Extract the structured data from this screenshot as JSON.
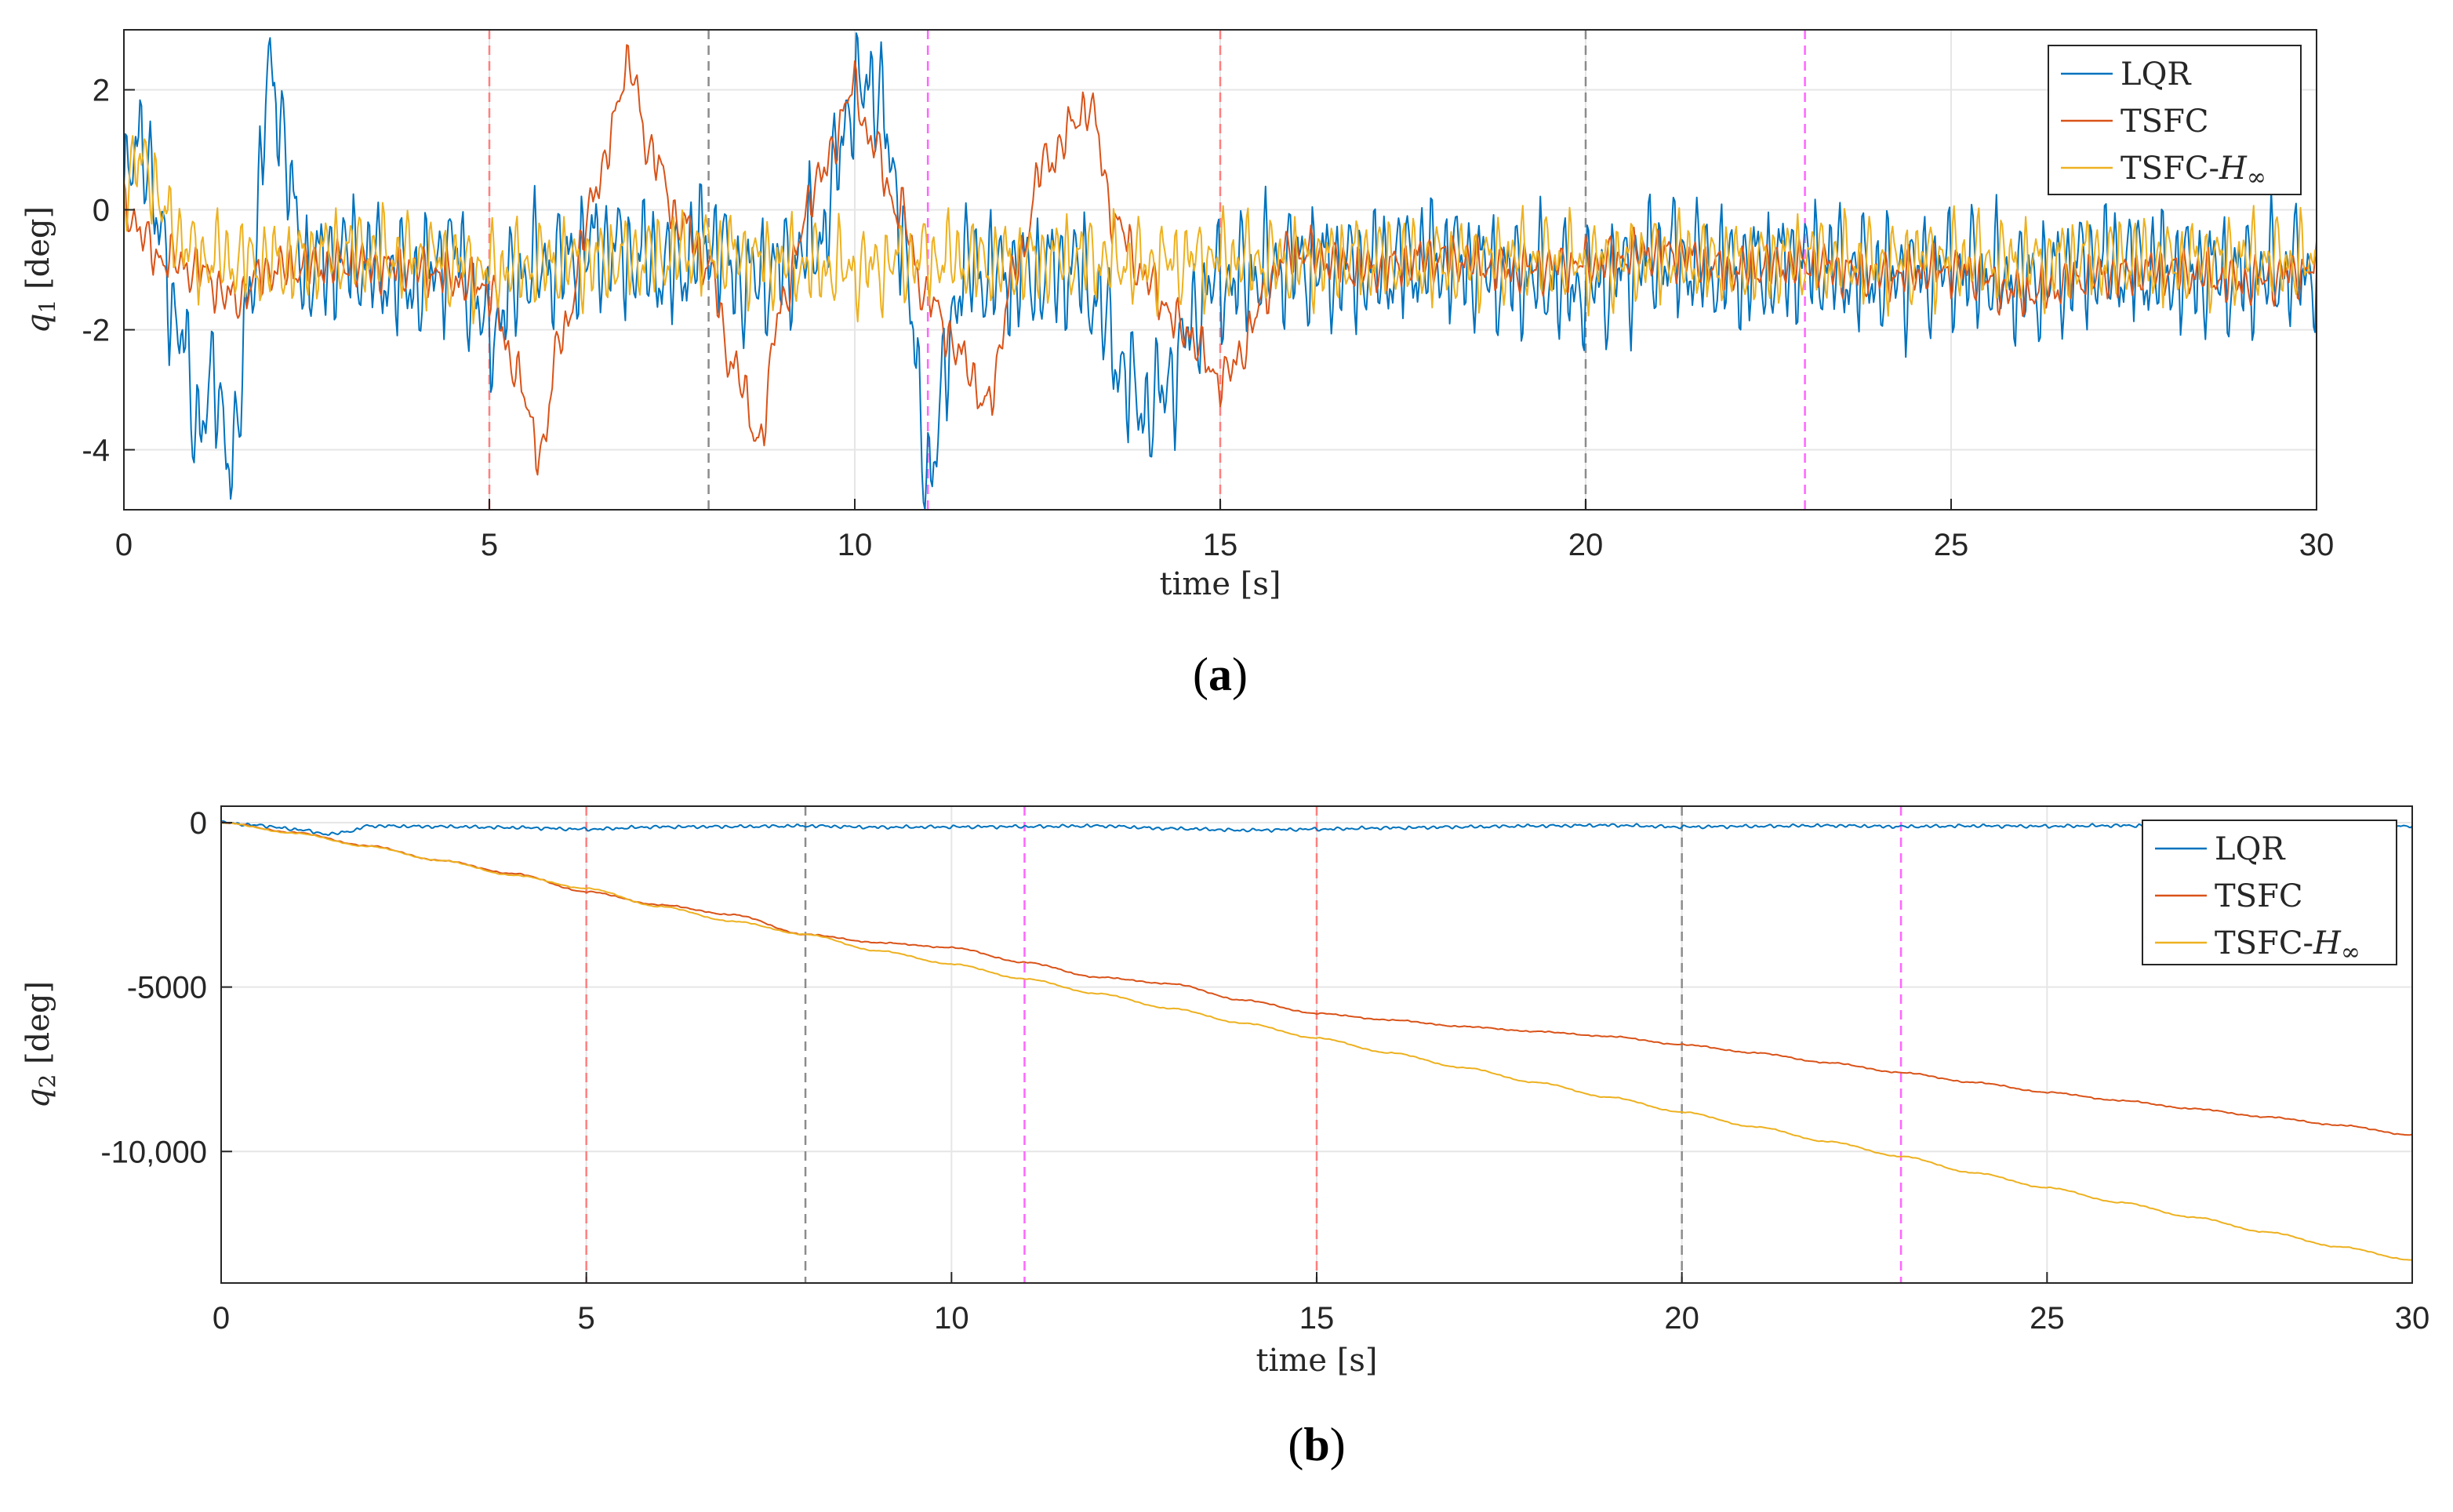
{
  "colors": {
    "lqr": "#0072BD",
    "tsfc": "#D95319",
    "tsfc_hinf": "#EDB120",
    "event_red": "#ff7f7f",
    "event_gray": "#8c8c8c",
    "event_magenta": "#ff66ff",
    "grid": "#e6e6e6",
    "axis": "#262626"
  },
  "chart_data": [
    {
      "type": "line",
      "panel": "(a)",
      "panel_letter": "a",
      "xlabel": "time [s]",
      "ylabel_var": "q",
      "ylabel_sub": "1",
      "ylabel_unit": " [deg]",
      "xlim": [
        0,
        30
      ],
      "ylim": [
        -5,
        3
      ],
      "xticks": [
        0,
        5,
        10,
        15,
        20,
        25,
        30
      ],
      "xtick_labels": [
        "0",
        "5",
        "10",
        "15",
        "20",
        "25",
        "30"
      ],
      "yticks": [
        -4,
        -2,
        0,
        2
      ],
      "ytick_labels": [
        "-4",
        "-2",
        "0",
        "2"
      ],
      "grid": true,
      "legend_position": "top-right",
      "event_lines": [
        {
          "x": 5,
          "color": "red"
        },
        {
          "x": 8,
          "color": "gray"
        },
        {
          "x": 11,
          "color": "magenta"
        },
        {
          "x": 15,
          "color": "red"
        },
        {
          "x": 20,
          "color": "gray"
        },
        {
          "x": 23,
          "color": "magenta"
        }
      ],
      "series": [
        {
          "name": "LQR",
          "legend_main": "LQR",
          "legend_sub": "",
          "color_key": "lqr",
          "x": [
            0,
            0.25,
            0.5,
            0.75,
            1.0,
            1.25,
            1.5,
            1.75,
            2.0,
            2.5,
            3.0,
            4.0,
            4.5,
            5.0,
            5.5,
            6.0,
            6.5,
            7.0,
            7.5,
            8.0,
            8.5,
            9.0,
            9.5,
            10.0,
            10.3,
            10.6,
            11.0,
            11.5,
            12.0,
            13.0,
            14.0,
            15.0,
            16.0,
            17.0,
            18.0,
            19.0,
            20.0,
            21.0,
            22.0,
            23.0,
            24.0,
            25.0,
            26.0,
            27.0,
            28.0,
            29.0,
            30.0
          ],
          "y": [
            0.2,
            1.3,
            -0.5,
            -2.0,
            -3.5,
            -3.0,
            -4.2,
            -1.0,
            2.2,
            -1.0,
            -0.8,
            -1.2,
            -0.7,
            -2.0,
            -1.0,
            -0.9,
            -0.6,
            -0.8,
            -1.0,
            -0.5,
            -1.2,
            -1.0,
            -0.5,
            1.9,
            2.1,
            0.0,
            -4.3,
            -1.0,
            -1.1,
            -1.0,
            -3.3,
            -1.2,
            -0.9,
            -1.0,
            -0.8,
            -1.1,
            -1.3,
            -0.8,
            -1.0,
            -0.9,
            -1.1,
            -1.0,
            -1.2,
            -0.9,
            -1.0,
            -1.1,
            -1.0
          ],
          "noise_amp": 1.3
        },
        {
          "name": "TSFC",
          "legend_main": "TSFC",
          "legend_sub": "",
          "color_key": "tsfc",
          "x": [
            0,
            0.5,
            1.0,
            1.5,
            2.0,
            3.0,
            4.0,
            5.0,
            5.3,
            5.7,
            6.0,
            6.5,
            6.9,
            7.2,
            7.6,
            8.0,
            8.3,
            8.7,
            9.0,
            9.5,
            10.0,
            10.2,
            10.6,
            11.0,
            11.5,
            11.8,
            12.2,
            12.6,
            13.2,
            13.6,
            14.0,
            14.5,
            15.0,
            16.0,
            17.0,
            18.0,
            19.0,
            20.0,
            21.0,
            22.0,
            23.0,
            24.0,
            25.0,
            26.0,
            27.0,
            28.0,
            29.0,
            30.0
          ],
          "y": [
            0.0,
            -0.8,
            -1.0,
            -1.5,
            -1.0,
            -0.9,
            -1.0,
            -1.3,
            -2.5,
            -4.0,
            -2.0,
            0.5,
            2.4,
            1.0,
            -0.2,
            -0.9,
            -2.5,
            -3.8,
            -1.5,
            0.5,
            2.0,
            1.2,
            0.0,
            -1.5,
            -2.5,
            -3.3,
            -1.0,
            0.8,
            1.7,
            -0.3,
            -1.2,
            -2.0,
            -2.8,
            -0.7,
            -1.0,
            -0.8,
            -1.0,
            -0.9,
            -0.7,
            -1.0,
            -0.9,
            -1.1,
            -1.0,
            -1.4,
            -1.1,
            -1.0,
            -1.2,
            -1.0
          ],
          "noise_amp": 0.5
        },
        {
          "name": "TSFC-H∞",
          "legend_main": "TSFC-",
          "legend_sub": "∞",
          "color_key": "tsfc_hinf",
          "x": [
            0,
            0.3,
            0.6,
            1.0,
            2.0,
            3.0,
            4.0,
            5.0,
            6.0,
            7.0,
            8.0,
            9.0,
            10.0,
            11.0,
            12.0,
            13.0,
            14.0,
            15.0,
            16.0,
            17.0,
            18.0,
            19.0,
            20.0,
            21.0,
            22.0,
            23.0,
            24.0,
            25.0,
            26.0,
            27.0,
            28.0,
            29.0,
            30.0
          ],
          "y": [
            0.5,
            0.8,
            -0.2,
            -0.8,
            -0.9,
            -0.7,
            -0.8,
            -1.0,
            -0.9,
            -0.8,
            -0.7,
            -0.9,
            -1.0,
            -0.8,
            -0.9,
            -0.8,
            -0.9,
            -0.8,
            -0.9,
            -0.8,
            -0.9,
            -0.8,
            -0.9,
            -0.8,
            -0.9,
            -0.8,
            -0.9,
            -0.8,
            -0.9,
            -0.8,
            -0.9,
            -0.8,
            -0.9
          ],
          "noise_amp": 0.9
        }
      ]
    },
    {
      "type": "line",
      "panel": "(b)",
      "panel_letter": "b",
      "xlabel": "time [s]",
      "ylabel_var": "q",
      "ylabel_sub": "2",
      "ylabel_unit": " [deg]",
      "xlim": [
        0,
        30
      ],
      "ylim": [
        -14000,
        500
      ],
      "xticks": [
        0,
        5,
        10,
        15,
        20,
        25,
        30
      ],
      "xtick_labels": [
        "0",
        "5",
        "10",
        "15",
        "20",
        "25",
        "30"
      ],
      "yticks": [
        0,
        -5000,
        -10000
      ],
      "ytick_labels": [
        "0",
        "-5000",
        "-10,000"
      ],
      "grid": true,
      "legend_position": "top-right",
      "event_lines": [
        {
          "x": 5,
          "color": "red"
        },
        {
          "x": 8,
          "color": "gray"
        },
        {
          "x": 11,
          "color": "magenta"
        },
        {
          "x": 15,
          "color": "red"
        },
        {
          "x": 20,
          "color": "gray"
        },
        {
          "x": 23,
          "color": "magenta"
        }
      ],
      "series": [
        {
          "name": "LQR",
          "legend_main": "LQR",
          "legend_sub": "",
          "color_key": "lqr",
          "x": [
            0,
            0.5,
            1.0,
            1.5,
            1.8,
            2.0,
            3.0,
            4.0,
            5.0,
            6.0,
            7.0,
            8.0,
            9.0,
            10.0,
            11.0,
            12.0,
            13.0,
            14.0,
            15.0,
            16.0,
            17.0,
            18.0,
            19.0,
            20.0,
            21.0,
            22.0,
            23.0,
            24.0,
            25.0,
            26.0,
            27.0,
            28.0,
            29.0,
            30.0
          ],
          "y": [
            0,
            -80,
            -200,
            -350,
            -250,
            -100,
            -120,
            -150,
            -200,
            -130,
            -120,
            -100,
            -140,
            -130,
            -120,
            -100,
            -180,
            -230,
            -200,
            -160,
            -130,
            -100,
            -80,
            -130,
            -110,
            -90,
            -120,
            -100,
            -110,
            -90,
            -100,
            -110,
            -90,
            -100
          ],
          "noise_amp": 60
        },
        {
          "name": "TSFC",
          "legend_main": "TSFC",
          "legend_sub": "",
          "color_key": "tsfc",
          "x": [
            0,
            1,
            2,
            3,
            4,
            5,
            6,
            7,
            8,
            9,
            10,
            11,
            12,
            13,
            14,
            15,
            16,
            17,
            18,
            19,
            20,
            21,
            22,
            23,
            24,
            25,
            26,
            27,
            28,
            29,
            30
          ],
          "y": [
            0,
            -300,
            -700,
            -1150,
            -1550,
            -2100,
            -2500,
            -2800,
            -3400,
            -3650,
            -3800,
            -4250,
            -4700,
            -4900,
            -5400,
            -5800,
            -6000,
            -6200,
            -6350,
            -6500,
            -6750,
            -7000,
            -7300,
            -7600,
            -7900,
            -8200,
            -8450,
            -8700,
            -8950,
            -9200,
            -9500
          ],
          "noise_amp": 20
        },
        {
          "name": "TSFC-H∞",
          "legend_main": "TSFC-",
          "legend_sub": "∞",
          "color_key": "tsfc_hinf",
          "x": [
            0,
            1,
            2,
            3,
            4,
            5,
            6,
            7,
            8,
            9,
            10,
            11,
            12,
            13,
            14,
            15,
            16,
            17,
            18,
            19,
            20,
            21,
            22,
            23,
            24,
            25,
            26,
            27,
            28,
            29,
            30
          ],
          "y": [
            0,
            -320,
            -720,
            -1150,
            -1600,
            -2000,
            -2550,
            -3000,
            -3400,
            -3900,
            -4300,
            -4750,
            -5200,
            -5650,
            -6100,
            -6550,
            -7000,
            -7450,
            -7900,
            -8350,
            -8800,
            -9250,
            -9700,
            -10150,
            -10650,
            -11100,
            -11550,
            -12000,
            -12450,
            -12900,
            -13300
          ],
          "noise_amp": 15
        }
      ]
    }
  ]
}
